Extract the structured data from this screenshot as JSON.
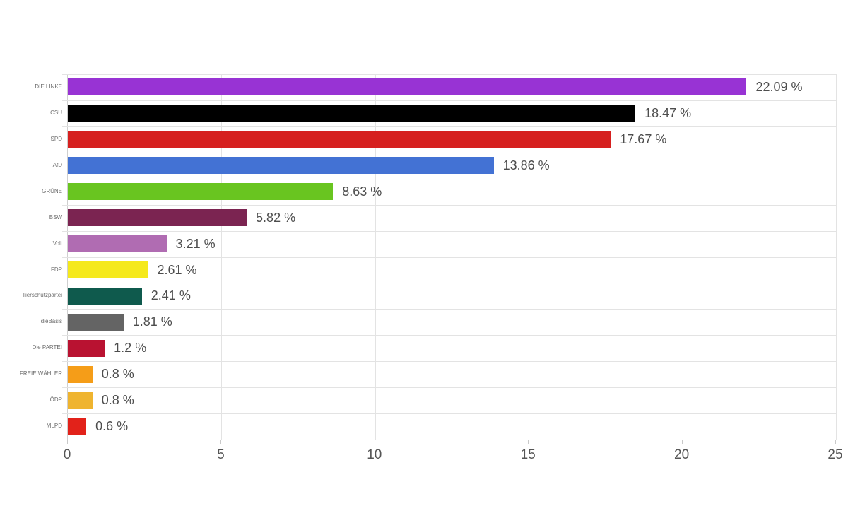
{
  "chart_data": {
    "type": "bar",
    "orientation": "horizontal",
    "categories": [
      "DIE LINKE",
      "CSU",
      "SPD",
      "AfD",
      "GRÜNE",
      "BSW",
      "Volt",
      "FDP",
      "Tierschutzpartei",
      "dieBasis",
      "Die PARTEI",
      "FREIE WÄHLER",
      "ÖDP",
      "MLPD"
    ],
    "values": [
      22.09,
      18.47,
      17.67,
      13.86,
      8.63,
      5.82,
      3.21,
      2.61,
      2.41,
      1.81,
      1.2,
      0.8,
      0.8,
      0.6
    ],
    "value_labels": [
      "22.09 %",
      "18.47 %",
      "17.67 %",
      "13.86 %",
      "8.63 %",
      "5.82 %",
      "3.21 %",
      "2.61 %",
      "2.41 %",
      "1.81 %",
      "1.2 %",
      "0.8 %",
      "0.8 %",
      "0.6 %"
    ],
    "bar_colors": [
      "#9833d4",
      "#000000",
      "#d6201f",
      "#4372d4",
      "#69c520",
      "#7b2451",
      "#b06cb2",
      "#f5e91c",
      "#0f5a4d",
      "#646464",
      "#b91231",
      "#f59d18",
      "#efb42f",
      "#e2221a"
    ],
    "x_ticks": [
      0,
      5,
      10,
      15,
      20,
      25
    ],
    "xlim": [
      0,
      25
    ],
    "xlabel": "",
    "ylabel": "",
    "grid": true,
    "legend": false
  },
  "style": {
    "background": "#ffffff",
    "grid_color": "#e3e3e3",
    "axis_color": "#b3b3b3",
    "value_label_color": "#4d4d4d",
    "category_label_color": "#6b6b6b",
    "tick_label_color": "#555555"
  }
}
